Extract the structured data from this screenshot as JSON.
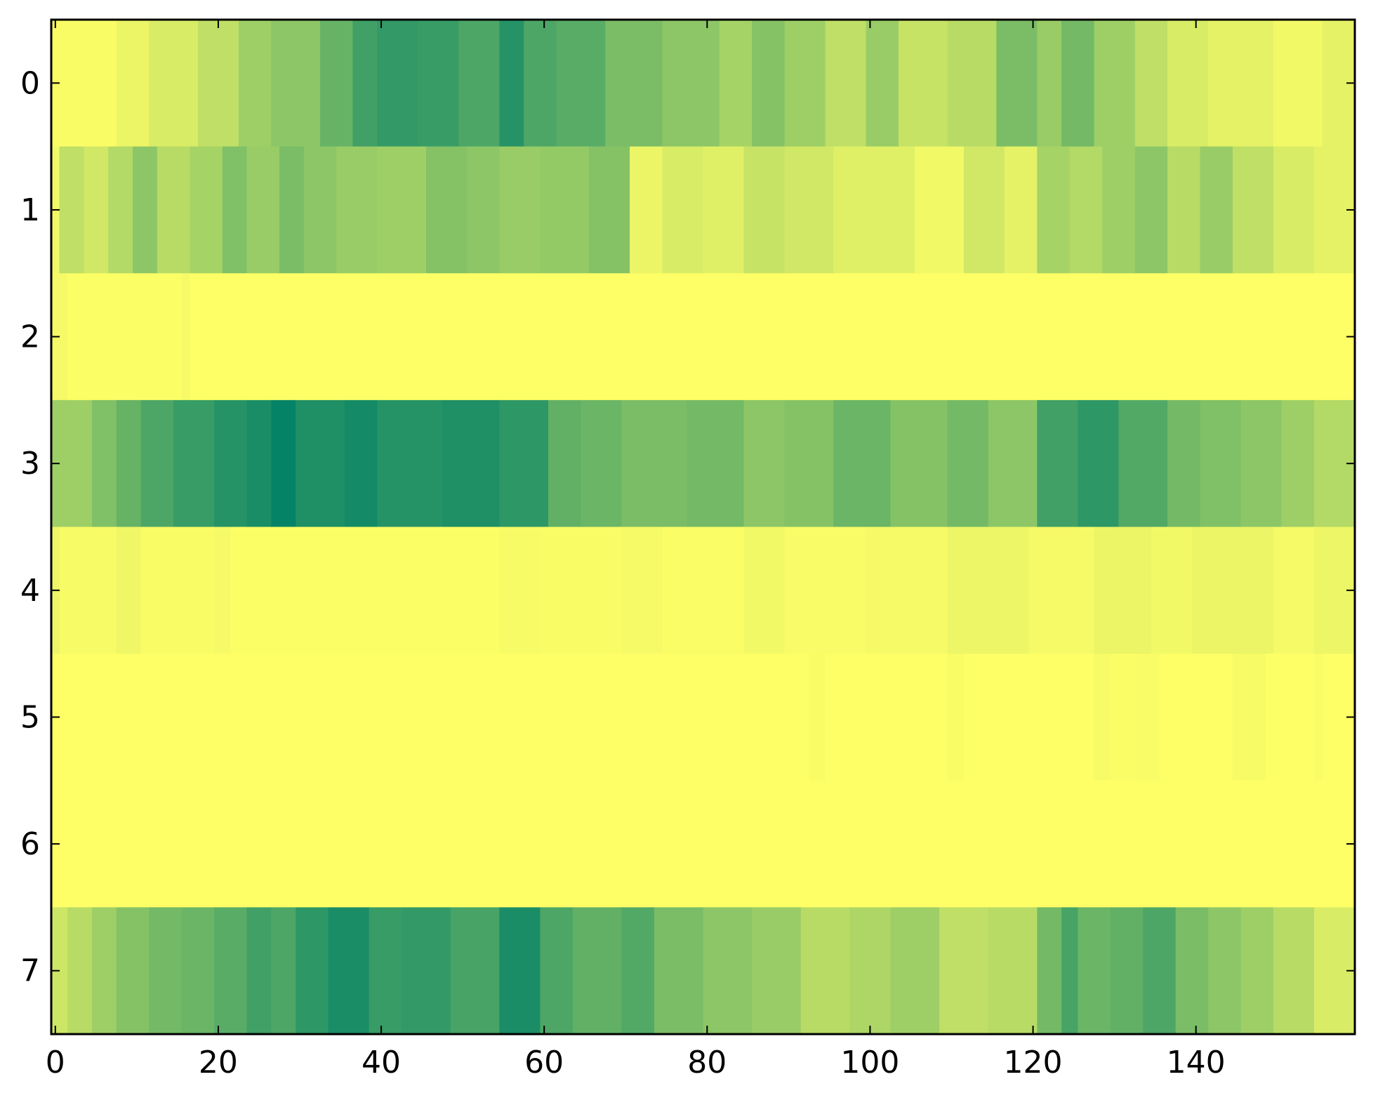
{
  "chart_data": {
    "type": "heatmap",
    "title": "",
    "xlabel": "",
    "ylabel": "",
    "colormap": "summer",
    "colormap_low": "#008066",
    "colormap_high": "#ffff66",
    "grid": false,
    "legend": "none",
    "x_columns": 160,
    "xlim": [
      -0.5,
      159.5
    ],
    "ylim": [
      7.5,
      -0.5
    ],
    "x_ticks": [
      0,
      20,
      40,
      60,
      80,
      100,
      120,
      140
    ],
    "x_tick_labels": [
      "0",
      "20",
      "40",
      "60",
      "80",
      "100",
      "120",
      "140"
    ],
    "y_ticks": [
      0,
      1,
      2,
      3,
      4,
      5,
      6,
      7
    ],
    "y_tick_labels": [
      "0",
      "1",
      "2",
      "3",
      "4",
      "5",
      "6",
      "7"
    ],
    "rows": [
      {
        "row": 0,
        "segments": [
          [
            0,
            0.98
          ],
          [
            8,
            0.92
          ],
          [
            12,
            0.85
          ],
          [
            18,
            0.75
          ],
          [
            23,
            0.62
          ],
          [
            27,
            0.55
          ],
          [
            33,
            0.4
          ],
          [
            37,
            0.25
          ],
          [
            40,
            0.2
          ],
          [
            45,
            0.22
          ],
          [
            50,
            0.3
          ],
          [
            55,
            0.15
          ],
          [
            58,
            0.3
          ],
          [
            62,
            0.35
          ],
          [
            68,
            0.48
          ],
          [
            75,
            0.55
          ],
          [
            82,
            0.65
          ],
          [
            86,
            0.52
          ],
          [
            90,
            0.62
          ],
          [
            95,
            0.75
          ],
          [
            100,
            0.6
          ],
          [
            104,
            0.78
          ],
          [
            110,
            0.72
          ],
          [
            116,
            0.48
          ],
          [
            121,
            0.6
          ],
          [
            124,
            0.45
          ],
          [
            128,
            0.62
          ],
          [
            133,
            0.75
          ],
          [
            137,
            0.85
          ],
          [
            142,
            0.9
          ],
          [
            150,
            0.95
          ],
          [
            156,
            0.9
          ]
        ]
      },
      {
        "row": 1,
        "segments": [
          [
            0,
            0.95
          ],
          [
            1,
            0.75
          ],
          [
            4,
            0.82
          ],
          [
            7,
            0.7
          ],
          [
            10,
            0.55
          ],
          [
            13,
            0.72
          ],
          [
            17,
            0.65
          ],
          [
            21,
            0.5
          ],
          [
            24,
            0.6
          ],
          [
            28,
            0.48
          ],
          [
            31,
            0.55
          ],
          [
            35,
            0.6
          ],
          [
            40,
            0.62
          ],
          [
            46,
            0.52
          ],
          [
            51,
            0.55
          ],
          [
            55,
            0.6
          ],
          [
            60,
            0.58
          ],
          [
            66,
            0.52
          ],
          [
            71,
            0.92
          ],
          [
            75,
            0.85
          ],
          [
            80,
            0.88
          ],
          [
            85,
            0.78
          ],
          [
            90,
            0.82
          ],
          [
            96,
            0.88
          ],
          [
            106,
            0.95
          ],
          [
            112,
            0.82
          ],
          [
            117,
            0.9
          ],
          [
            121,
            0.65
          ],
          [
            125,
            0.7
          ],
          [
            129,
            0.62
          ],
          [
            133,
            0.55
          ],
          [
            137,
            0.72
          ],
          [
            141,
            0.6
          ],
          [
            145,
            0.75
          ],
          [
            150,
            0.85
          ],
          [
            155,
            0.9
          ]
        ]
      },
      {
        "row": 2,
        "segments": [
          [
            0,
            0.96
          ],
          [
            2,
            0.99
          ],
          [
            16,
            0.96
          ],
          [
            17,
            0.995
          ]
        ]
      },
      {
        "row": 3,
        "segments": [
          [
            0,
            0.62
          ],
          [
            5,
            0.5
          ],
          [
            8,
            0.4
          ],
          [
            11,
            0.3
          ],
          [
            15,
            0.22
          ],
          [
            20,
            0.15
          ],
          [
            24,
            0.1
          ],
          [
            27,
            0.02
          ],
          [
            30,
            0.12
          ],
          [
            36,
            0.08
          ],
          [
            40,
            0.15
          ],
          [
            48,
            0.12
          ],
          [
            55,
            0.18
          ],
          [
            61,
            0.38
          ],
          [
            65,
            0.42
          ],
          [
            70,
            0.48
          ],
          [
            78,
            0.45
          ],
          [
            85,
            0.55
          ],
          [
            90,
            0.52
          ],
          [
            96,
            0.42
          ],
          [
            103,
            0.52
          ],
          [
            110,
            0.45
          ],
          [
            115,
            0.55
          ],
          [
            121,
            0.25
          ],
          [
            126,
            0.18
          ],
          [
            131,
            0.32
          ],
          [
            137,
            0.45
          ],
          [
            141,
            0.5
          ],
          [
            146,
            0.55
          ],
          [
            151,
            0.62
          ],
          [
            155,
            0.7
          ]
        ]
      },
      {
        "row": 4,
        "segments": [
          [
            0,
            0.93
          ],
          [
            1,
            0.97
          ],
          [
            8,
            0.94
          ],
          [
            11,
            0.98
          ],
          [
            20,
            0.96
          ],
          [
            22,
            0.99
          ],
          [
            55,
            0.97
          ],
          [
            60,
            0.98
          ],
          [
            70,
            0.96
          ],
          [
            75,
            0.985
          ],
          [
            85,
            0.95
          ],
          [
            90,
            0.975
          ],
          [
            100,
            0.96
          ],
          [
            110,
            0.93
          ],
          [
            120,
            0.96
          ],
          [
            128,
            0.92
          ],
          [
            135,
            0.95
          ],
          [
            140,
            0.92
          ],
          [
            150,
            0.96
          ],
          [
            155,
            0.93
          ]
        ]
      },
      {
        "row": 5,
        "segments": [
          [
            0,
            0.995
          ],
          [
            93,
            0.98
          ],
          [
            95,
            0.995
          ],
          [
            110,
            0.98
          ],
          [
            112,
            0.995
          ],
          [
            128,
            0.97
          ],
          [
            130,
            0.985
          ],
          [
            133,
            0.975
          ],
          [
            136,
            0.995
          ],
          [
            145,
            0.97
          ],
          [
            149,
            0.995
          ],
          [
            155,
            0.98
          ],
          [
            156,
            0.995
          ]
        ]
      },
      {
        "row": 6,
        "segments": [
          [
            0,
            0.995
          ]
        ]
      },
      {
        "row": 7,
        "segments": [
          [
            0,
            0.8
          ],
          [
            2,
            0.72
          ],
          [
            5,
            0.62
          ],
          [
            8,
            0.52
          ],
          [
            12,
            0.45
          ],
          [
            16,
            0.42
          ],
          [
            20,
            0.35
          ],
          [
            24,
            0.25
          ],
          [
            27,
            0.3
          ],
          [
            30,
            0.18
          ],
          [
            34,
            0.1
          ],
          [
            39,
            0.22
          ],
          [
            43,
            0.2
          ],
          [
            49,
            0.28
          ],
          [
            55,
            0.1
          ],
          [
            60,
            0.3
          ],
          [
            64,
            0.38
          ],
          [
            70,
            0.32
          ],
          [
            74,
            0.48
          ],
          [
            80,
            0.55
          ],
          [
            86,
            0.6
          ],
          [
            92,
            0.72
          ],
          [
            98,
            0.68
          ],
          [
            103,
            0.62
          ],
          [
            109,
            0.75
          ],
          [
            115,
            0.72
          ],
          [
            121,
            0.45
          ],
          [
            124,
            0.28
          ],
          [
            126,
            0.42
          ],
          [
            130,
            0.38
          ],
          [
            134,
            0.3
          ],
          [
            138,
            0.48
          ],
          [
            142,
            0.55
          ],
          [
            146,
            0.62
          ],
          [
            150,
            0.72
          ],
          [
            155,
            0.85
          ]
        ]
      }
    ]
  }
}
